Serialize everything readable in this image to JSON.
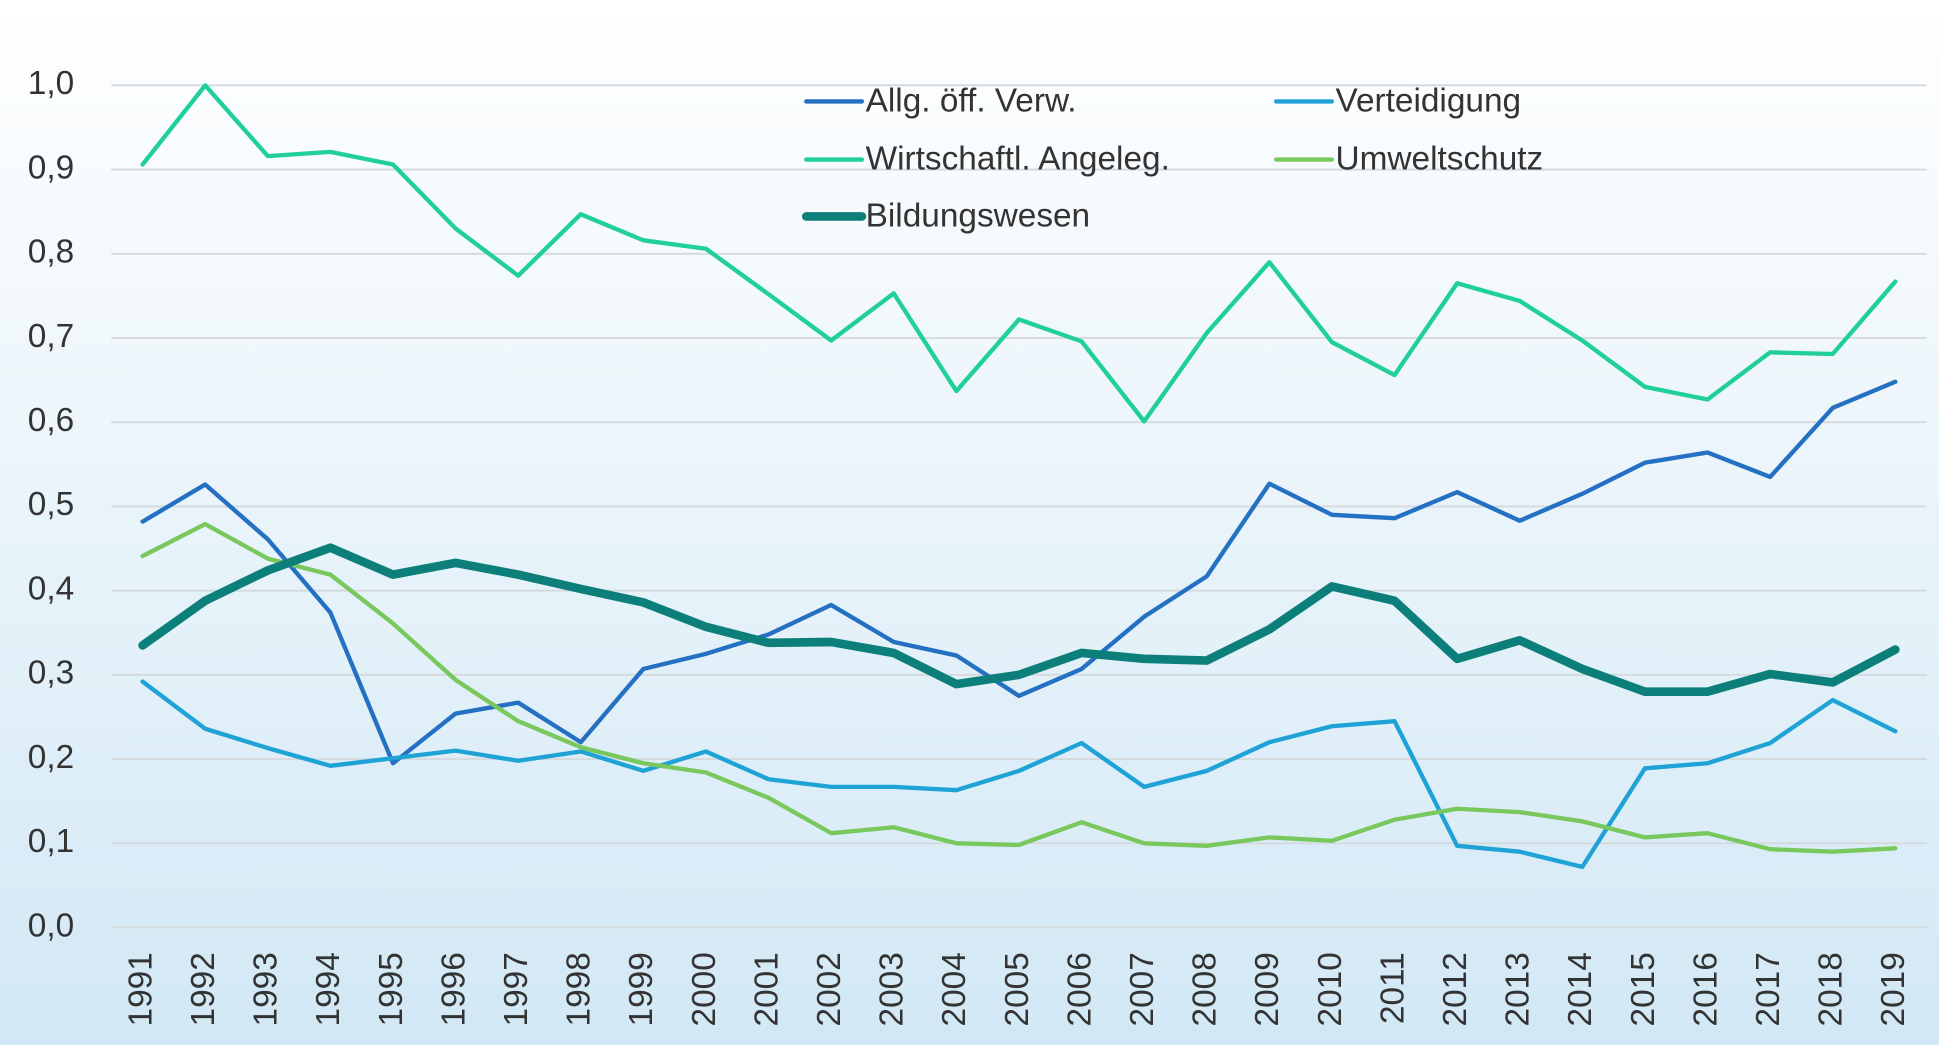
{
  "chart_data": {
    "type": "line",
    "categories": [
      "1991",
      "1992",
      "1993",
      "1994",
      "1995",
      "1996",
      "1997",
      "1998",
      "1999",
      "2000",
      "2001",
      "2002",
      "2003",
      "2004",
      "2005",
      "2006",
      "2007",
      "2008",
      "2009",
      "2010",
      "2011",
      "2012",
      "2013",
      "2014",
      "2015",
      "2016",
      "2017",
      "2018",
      "2019"
    ],
    "series": [
      {
        "name": "Allg. öff. Verw.",
        "color": "#2470c2",
        "line_width": 3.5,
        "values": [
          0.482,
          0.526,
          0.461,
          0.374,
          0.195,
          0.254,
          0.267,
          0.22,
          0.307,
          0.325,
          0.348,
          0.383,
          0.339,
          0.323,
          0.275,
          0.307,
          0.369,
          0.417,
          0.527,
          0.49,
          0.486,
          0.517,
          0.483,
          0.515,
          0.552,
          0.564,
          0.535,
          0.617,
          0.648
        ]
      },
      {
        "name": "Verteidigung",
        "color": "#1fa2d6",
        "line_width": 3.5,
        "values": [
          0.292,
          0.236,
          0.213,
          0.192,
          0.201,
          0.21,
          0.198,
          0.209,
          0.186,
          0.209,
          0.176,
          0.167,
          0.167,
          0.163,
          0.186,
          0.219,
          0.167,
          0.186,
          0.22,
          0.239,
          0.245,
          0.097,
          0.09,
          0.072,
          0.189,
          0.195,
          0.219,
          0.27,
          0.233
        ]
      },
      {
        "name": "Wirtschaftl. Angeleg.",
        "color": "#20cf9a",
        "line_width": 3.5,
        "values": [
          0.906,
          1.0,
          0.916,
          0.921,
          0.906,
          0.83,
          0.774,
          0.847,
          0.816,
          0.806,
          0.752,
          0.697,
          0.753,
          0.637,
          0.722,
          0.696,
          0.601,
          0.706,
          0.79,
          0.695,
          0.656,
          0.765,
          0.744,
          0.697,
          0.642,
          0.627,
          0.683,
          0.681,
          0.767
        ]
      },
      {
        "name": "Umweltschutz",
        "color": "#79c85e",
        "line_width": 3.5,
        "values": [
          0.441,
          0.479,
          0.438,
          0.419,
          0.361,
          0.294,
          0.245,
          0.214,
          0.195,
          0.184,
          0.154,
          0.112,
          0.119,
          0.1,
          0.098,
          0.125,
          0.1,
          0.097,
          0.107,
          0.103,
          0.128,
          0.141,
          0.137,
          0.126,
          0.107,
          0.112,
          0.093,
          0.09,
          0.094
        ]
      },
      {
        "name": "Bildungswesen",
        "color": "#0c7f7b",
        "line_width": 7,
        "values": [
          0.335,
          0.388,
          0.424,
          0.451,
          0.419,
          0.433,
          0.419,
          0.402,
          0.386,
          0.357,
          0.338,
          0.339,
          0.326,
          0.289,
          0.3,
          0.326,
          0.319,
          0.317,
          0.354,
          0.405,
          0.388,
          0.319,
          0.341,
          0.307,
          0.28,
          0.28,
          0.301,
          0.291,
          0.33
        ]
      }
    ],
    "ylim": [
      0,
      1.0
    ],
    "yticks": [
      {
        "value": 0,
        "label": "0,0"
      },
      {
        "value": 0.1,
        "label": "0,1"
      },
      {
        "value": 0.2,
        "label": "0,2"
      },
      {
        "value": 0.3,
        "label": "0,3"
      },
      {
        "value": 0.4,
        "label": "0,4"
      },
      {
        "value": 0.5,
        "label": "0,5"
      },
      {
        "value": 0.6,
        "label": "0,6"
      },
      {
        "value": 0.7,
        "label": "0,7"
      },
      {
        "value": 0.8,
        "label": "0,8"
      },
      {
        "value": 0.9,
        "label": "0,9"
      },
      {
        "value": 1.0,
        "label": "1,0"
      }
    ],
    "grid": true,
    "legend": "top"
  }
}
